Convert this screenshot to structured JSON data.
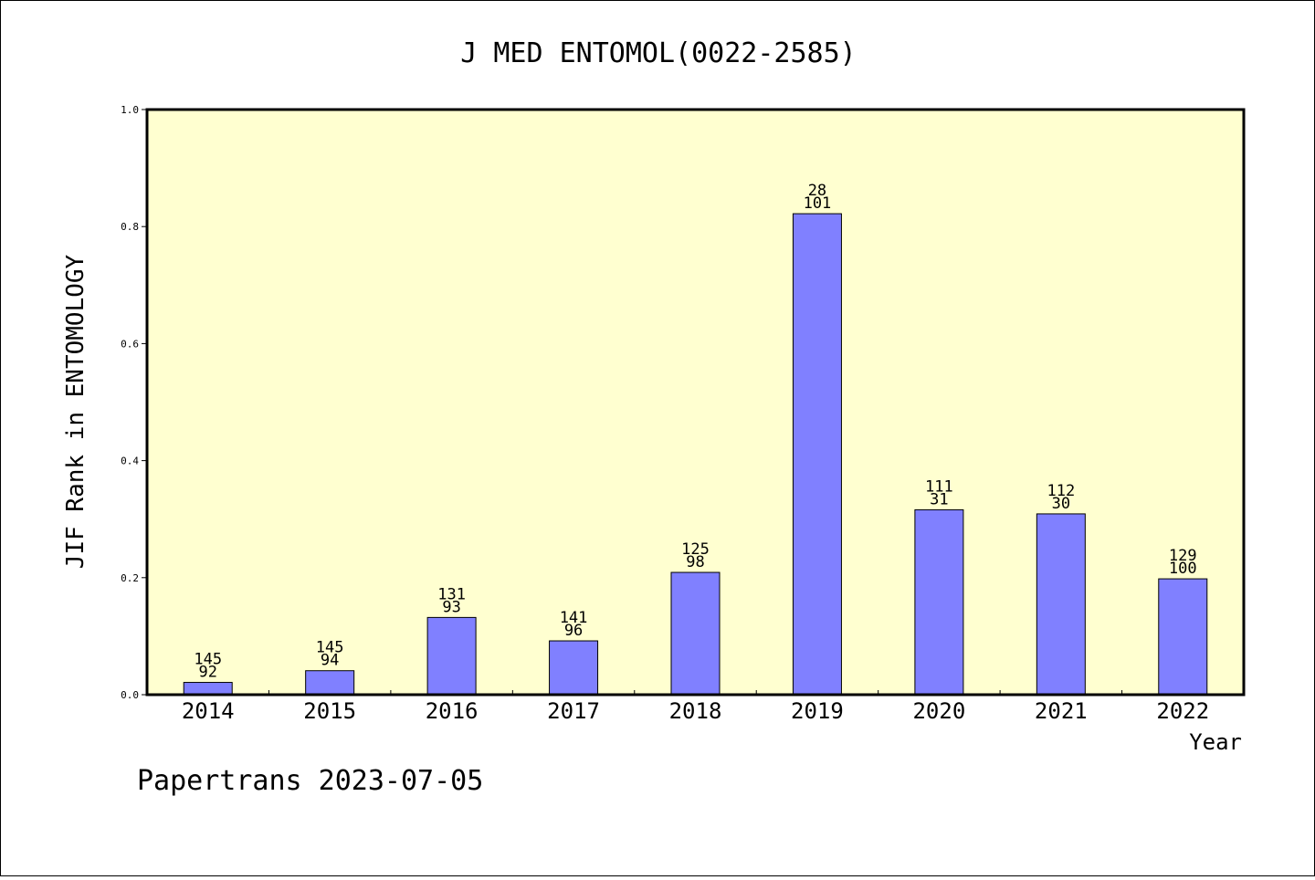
{
  "chart_data": {
    "type": "bar",
    "title": "J MED ENTOMOL(0022-2585)",
    "xlabel": "Year",
    "ylabel": "JIF Rank in ENTOMOLOGY",
    "ylim": [
      0,
      1.0
    ],
    "yticks": [
      "0.0",
      "0.2",
      "0.4",
      "0.6",
      "0.8",
      "1.0"
    ],
    "ytick_values": [
      0.0,
      0.2,
      0.4,
      0.6,
      0.8,
      1.0
    ],
    "grid": false,
    "categories": [
      "2014",
      "2015",
      "2016",
      "2017",
      "2018",
      "2019",
      "2020",
      "2021",
      "2022"
    ],
    "values": [
      0.021,
      0.041,
      0.132,
      0.092,
      0.209,
      0.822,
      0.316,
      0.309,
      0.198
    ],
    "labels_top": [
      "145",
      "145",
      "131",
      "141",
      "125",
      "28",
      "111",
      "112",
      "129"
    ],
    "labels_bottom": [
      "92",
      "94",
      "93",
      "96",
      "98",
      "101",
      "31",
      "30",
      "100"
    ],
    "colors": {
      "plot_background": "#ffffd0",
      "bar_fill": "#8080ff",
      "bar_stroke": "#000000"
    }
  },
  "footer": {
    "text": "Papertrans 2023-07-05"
  }
}
